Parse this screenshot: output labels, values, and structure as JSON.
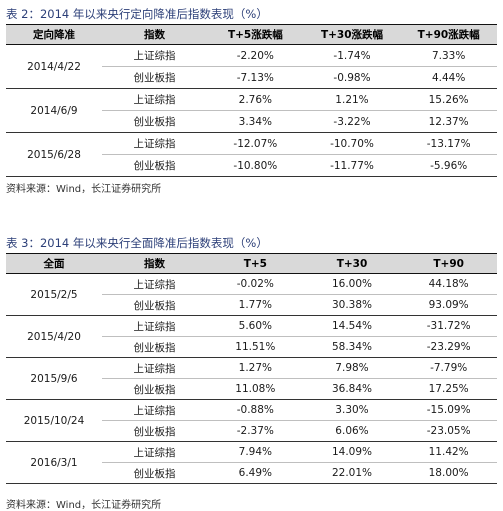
{
  "table1": {
    "caption": "表 2：2014 年以来央行定向降准后指数表现（%）",
    "headers": [
      "定向降准",
      "指数",
      "T+5涨跌幅",
      "T+30涨跌幅",
      "T+90涨跌幅"
    ],
    "groups": [
      {
        "date": "2014/4/22",
        "rows": [
          {
            "index": "上证综指",
            "t5": "-2.20%",
            "t30": "-1.74%",
            "t90": "7.33%"
          },
          {
            "index": "创业板指",
            "t5": "-7.13%",
            "t30": "-0.98%",
            "t90": "4.44%"
          }
        ]
      },
      {
        "date": "2014/6/9",
        "rows": [
          {
            "index": "上证综指",
            "t5": "2.76%",
            "t30": "1.21%",
            "t90": "15.26%"
          },
          {
            "index": "创业板指",
            "t5": "3.34%",
            "t30": "-3.22%",
            "t90": "12.37%"
          }
        ]
      },
      {
        "date": "2015/6/28",
        "rows": [
          {
            "index": "上证综指",
            "t5": "-12.07%",
            "t30": "-10.70%",
            "t90": "-13.17%"
          },
          {
            "index": "创业板指",
            "t5": "-10.80%",
            "t30": "-11.77%",
            "t90": "-5.96%"
          }
        ]
      }
    ],
    "source": "资料来源：Wind，长江证券研究所"
  },
  "table2": {
    "caption": "表 3：2014 年以来央行全面降准后指数表现（%）",
    "headers": [
      "全面",
      "指数",
      "T+5",
      "T+30",
      "T+90"
    ],
    "groups": [
      {
        "date": "2015/2/5",
        "rows": [
          {
            "index": "上证综指",
            "t5": "-0.02%",
            "t30": "16.00%",
            "t90": "44.18%"
          },
          {
            "index": "创业板指",
            "t5": "1.77%",
            "t30": "30.38%",
            "t90": "93.09%"
          }
        ]
      },
      {
        "date": "2015/4/20",
        "rows": [
          {
            "index": "上证综指",
            "t5": "5.60%",
            "t30": "14.54%",
            "t90": "-31.72%"
          },
          {
            "index": "创业板指",
            "t5": "11.51%",
            "t30": "58.34%",
            "t90": "-23.29%"
          }
        ]
      },
      {
        "date": "2015/9/6",
        "rows": [
          {
            "index": "上证综指",
            "t5": "1.27%",
            "t30": "7.98%",
            "t90": "-7.79%"
          },
          {
            "index": "创业板指",
            "t5": "11.08%",
            "t30": "36.84%",
            "t90": "17.25%"
          }
        ]
      },
      {
        "date": "2015/10/24",
        "rows": [
          {
            "index": "上证综指",
            "t5": "-0.88%",
            "t30": "3.30%",
            "t90": "-15.09%"
          },
          {
            "index": "创业板指",
            "t5": "-2.37%",
            "t30": "6.06%",
            "t90": "-23.05%"
          }
        ]
      },
      {
        "date": "2016/3/1",
        "rows": [
          {
            "index": "上证综指",
            "t5": "7.94%",
            "t30": "14.09%",
            "t90": "11.42%"
          },
          {
            "index": "创业板指",
            "t5": "6.49%",
            "t30": "22.01%",
            "t90": "18.00%"
          }
        ]
      }
    ],
    "source": "资料来源：Wind，长江证券研究所"
  }
}
